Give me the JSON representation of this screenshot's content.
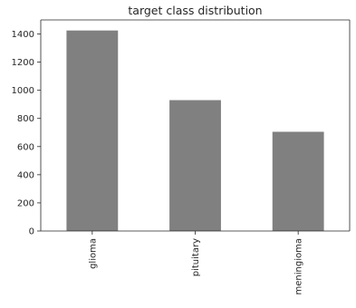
{
  "chart_data": {
    "type": "bar",
    "title": "target class distribution",
    "xlabel": "",
    "ylabel": "",
    "categories": [
      "glioma",
      "pituitary",
      "meningioma"
    ],
    "values": [
      1425,
      930,
      705
    ],
    "ylim": [
      0,
      1500
    ],
    "yticks": [
      0,
      200,
      400,
      600,
      800,
      1000,
      1200,
      1400
    ],
    "grid": false,
    "legend": "none",
    "bar_color": "#808080",
    "axis_color": "#262626"
  }
}
